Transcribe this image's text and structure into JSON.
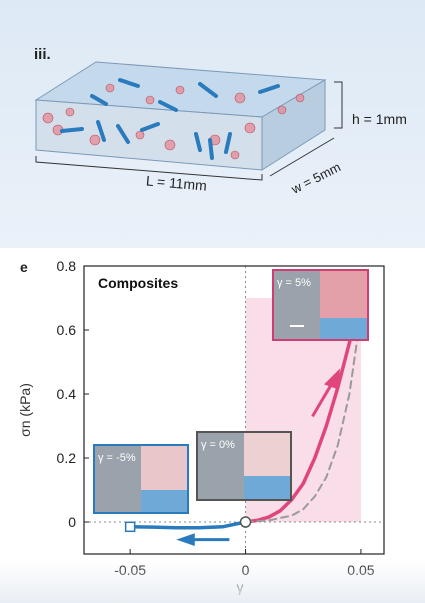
{
  "panel_iii": {
    "label": "iii.",
    "dim_L": "L = 11mm",
    "dim_w": "w = 5mm",
    "dim_h": "h = 1mm"
  },
  "panel_e": {
    "label": "e",
    "title": "Composites",
    "inset_labels": [
      "γ = -5%",
      "γ = 0%",
      "γ = 5%"
    ]
  },
  "colors": {
    "loading": "#e0457b",
    "unloading": "#2a7bbd",
    "reference": "#9a9a9a",
    "shade": "#f8d6e3"
  },
  "chart_data": {
    "type": "line",
    "title": "",
    "xlabel": "γ",
    "ylabel": "σn (kPa)",
    "xlim": [
      -0.07,
      0.06
    ],
    "ylim": [
      -0.1,
      0.8
    ],
    "xticks": [
      -0.05,
      0,
      0.05
    ],
    "xtick_labels": [
      "-0.05",
      "0",
      "0.05"
    ],
    "yticks": [
      0,
      0.2,
      0.4,
      0.6,
      0.8
    ],
    "ytick_labels": [
      "0",
      "0.2",
      "0.4",
      "0.6",
      "0.8"
    ],
    "grid": false,
    "legend": "none",
    "shaded_region": {
      "x": [
        0,
        0.05
      ],
      "y": [
        0,
        0.7
      ]
    },
    "series": [
      {
        "style": "solid",
        "color": "#e0457b",
        "x": [
          0,
          0.005,
          0.01,
          0.015,
          0.02,
          0.025,
          0.03,
          0.035,
          0.04,
          0.045,
          0.05
        ],
        "y": [
          0,
          0.005,
          0.015,
          0.035,
          0.07,
          0.12,
          0.2,
          0.3,
          0.42,
          0.56,
          0.7
        ]
      },
      {
        "style": "dashed",
        "color": "#9a9a9a",
        "x": [
          0,
          0.01,
          0.02,
          0.025,
          0.03,
          0.035,
          0.04,
          0.045,
          0.05
        ],
        "y": [
          0,
          0.005,
          0.02,
          0.04,
          0.08,
          0.14,
          0.24,
          0.4,
          0.65
        ]
      },
      {
        "style": "solid",
        "color": "#2a7bbd",
        "x": [
          0,
          -0.01,
          -0.02,
          -0.03,
          -0.04,
          -0.05
        ],
        "y": [
          0,
          -0.015,
          -0.018,
          -0.018,
          -0.016,
          -0.015
        ]
      }
    ],
    "markers": [
      {
        "shape": "circle",
        "x": 0,
        "y": 0,
        "color": "#555555"
      },
      {
        "shape": "triangle",
        "x": 0.05,
        "y": 0.7,
        "color": "#e0457b"
      },
      {
        "shape": "square",
        "x": -0.05,
        "y": -0.015,
        "color": "#2a7bbd"
      }
    ]
  }
}
